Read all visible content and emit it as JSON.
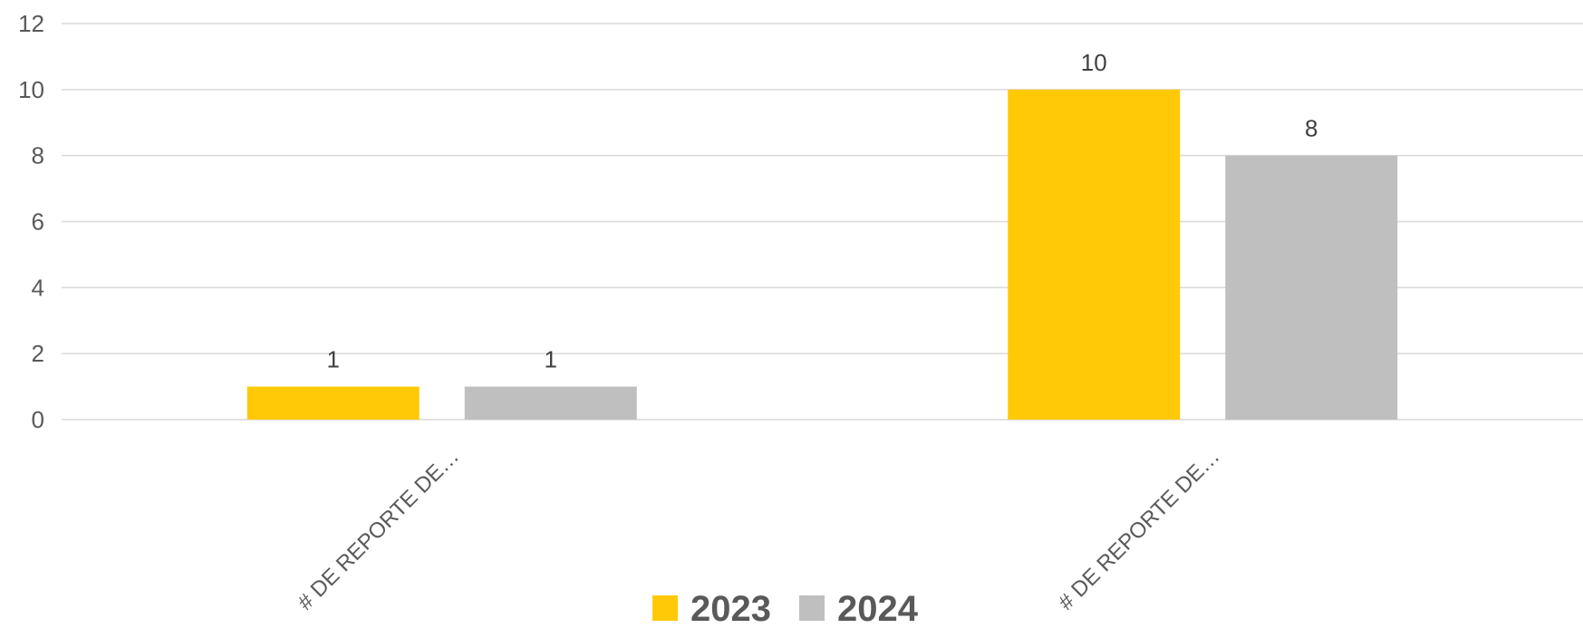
{
  "chart_data": {
    "type": "bar",
    "categories": [
      "# DE REPORTE DE…",
      "# DE REPORTE DE…"
    ],
    "series": [
      {
        "name": "2023",
        "values": [
          1,
          10
        ],
        "color": "#ffc908"
      },
      {
        "name": "2024",
        "values": [
          1,
          8
        ],
        "color": "#bfbfbf"
      }
    ],
    "ylim": [
      0,
      12
    ],
    "yticks": [
      0,
      2,
      4,
      6,
      8,
      10,
      12
    ],
    "grid": true,
    "legend": "bottom-center"
  }
}
